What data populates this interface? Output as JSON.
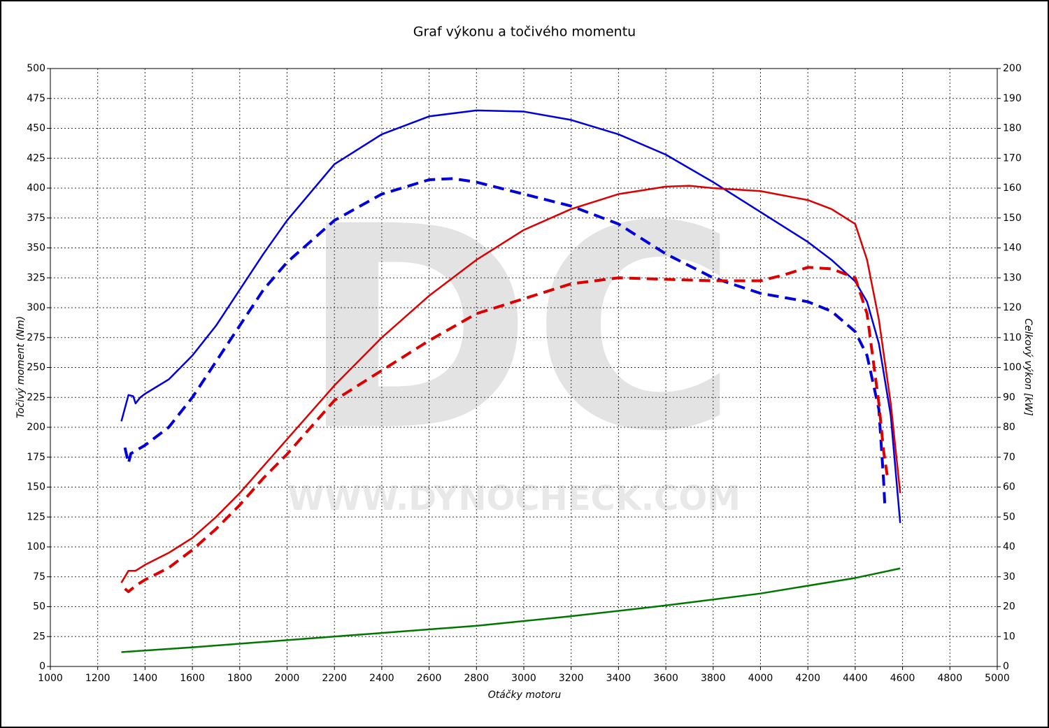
{
  "chart_data": {
    "type": "line",
    "title": "Graf výkonu a točivého momentu",
    "x_label": "Otáčky motoru",
    "y_label": "Točivý moment (Nm)",
    "y2_label": "Celkový výkon [kW]",
    "watermark": "DC",
    "watermark_url": "WWW.DYNOCHECK.COM",
    "xlim": [
      1000,
      5000
    ],
    "xticks": [
      1000,
      1200,
      1400,
      1600,
      1800,
      2000,
      2200,
      2400,
      2600,
      2800,
      3000,
      3200,
      3400,
      3600,
      3800,
      4000,
      4200,
      4400,
      4600,
      4800,
      5000
    ],
    "ylim": [
      0,
      500
    ],
    "yticks": [
      0,
      25,
      50,
      75,
      100,
      125,
      150,
      175,
      200,
      225,
      250,
      275,
      300,
      325,
      350,
      375,
      400,
      425,
      450,
      475,
      500
    ],
    "y2lim": [
      0,
      200
    ],
    "y2ticks": [
      0,
      10,
      20,
      30,
      40,
      50,
      60,
      70,
      80,
      90,
      100,
      110,
      120,
      130,
      140,
      150,
      160,
      170,
      180,
      190,
      200
    ],
    "grid": true,
    "series": [
      {
        "color": "#0000dd",
        "dashed": false,
        "x": [
          1300,
          1330,
          1350,
          1360,
          1380,
          1400,
          1500,
          1600,
          1700,
          1800,
          1900,
          2000,
          2200,
          2400,
          2600,
          2800,
          3000,
          3200,
          3400,
          3600,
          3800,
          4000,
          4200,
          4300,
          4400,
          4450,
          4500,
          4550,
          4590
        ],
        "values": [
          205,
          227,
          226,
          220,
          225,
          228,
          240,
          260,
          285,
          315,
          345,
          373,
          420,
          445,
          460,
          465,
          464,
          457,
          445,
          428,
          405,
          380,
          355,
          340,
          322,
          305,
          270,
          210,
          120
        ]
      },
      {
        "color": "#0000dd",
        "dashed": true,
        "x": [
          1315,
          1330,
          1340,
          1400,
          1500,
          1600,
          1700,
          1800,
          1900,
          2000,
          2200,
          2400,
          2600,
          2700,
          2800,
          3000,
          3200,
          3400,
          3600,
          3800,
          4000,
          4200,
          4300,
          4400,
          4450,
          4500,
          4520,
          4525
        ],
        "values": [
          183,
          170,
          178,
          185,
          200,
          225,
          255,
          285,
          315,
          338,
          373,
          395,
          407,
          408,
          405,
          395,
          385,
          370,
          345,
          325,
          312,
          305,
          297,
          280,
          260,
          215,
          155,
          135
        ]
      },
      {
        "color": "#dd0000",
        "dashed": false,
        "axis": "y2",
        "x": [
          1300,
          1330,
          1360,
          1400,
          1500,
          1600,
          1700,
          1800,
          1900,
          2000,
          2200,
          2400,
          2600,
          2800,
          3000,
          3200,
          3400,
          3600,
          3700,
          3800,
          4000,
          4200,
          4300,
          4400,
          4450,
          4500,
          4550,
          4590
        ],
        "values": [
          28,
          32,
          32,
          34,
          38,
          43,
          50,
          58,
          67,
          76,
          94,
          110,
          124,
          136,
          146,
          153,
          158,
          160.5,
          160.8,
          160,
          159,
          156,
          153,
          148,
          136,
          116,
          88,
          58
        ]
      },
      {
        "color": "#dd0000",
        "dashed": true,
        "axis": "y2",
        "x": [
          1315,
          1330,
          1360,
          1400,
          1500,
          1600,
          1700,
          1800,
          1900,
          2000,
          2200,
          2400,
          2600,
          2800,
          3000,
          3200,
          3400,
          3600,
          3800,
          4000,
          4100,
          4200,
          4300,
          4400,
          4450,
          4480,
          4500,
          4520,
          4535
        ],
        "values": [
          26,
          25,
          27,
          29,
          33,
          39,
          46,
          54,
          63,
          71,
          89,
          99,
          109,
          118,
          123,
          128,
          130,
          129.5,
          129,
          129,
          131,
          133.5,
          133,
          130,
          118,
          100,
          88,
          72,
          64
        ]
      },
      {
        "color": "#007700",
        "dashed": false,
        "axis": "y2",
        "x": [
          1300,
          1600,
          2000,
          2400,
          2800,
          3200,
          3600,
          4000,
          4400,
          4590
        ],
        "values": [
          4.8,
          6.4,
          8.8,
          11.2,
          13.6,
          16.8,
          20.4,
          24.4,
          29.6,
          32.8
        ]
      }
    ]
  }
}
